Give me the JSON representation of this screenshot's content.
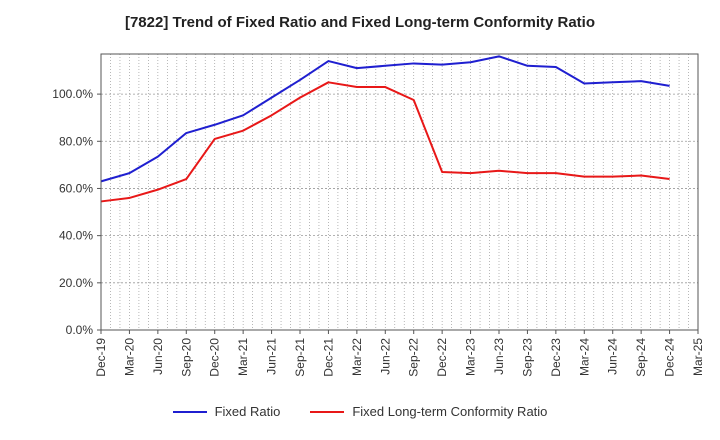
{
  "chart_data": {
    "type": "line",
    "title": "[7822]  Trend of Fixed Ratio and Fixed Long-term Conformity Ratio",
    "xlabel": "",
    "ylabel": "",
    "ylim": [
      0,
      117
    ],
    "yticks": [
      0,
      20,
      40,
      60,
      80,
      100
    ],
    "ytick_labels": [
      "0.0%",
      "20.0%",
      "40.0%",
      "60.0%",
      "80.0%",
      "100.0%"
    ],
    "x_tick_labels": [
      "Dec-19",
      "Mar-20",
      "Jun-20",
      "Sep-20",
      "Dec-20",
      "Mar-21",
      "Jun-21",
      "Sep-21",
      "Dec-21",
      "Mar-22",
      "Jun-22",
      "Sep-22",
      "Dec-22",
      "Mar-23",
      "Jun-23",
      "Sep-23",
      "Dec-23",
      "Mar-24",
      "Jun-24",
      "Sep-24",
      "Dec-24",
      "Mar-25"
    ],
    "x": [
      "Dec-19",
      "Mar-20",
      "Jun-20",
      "Sep-20",
      "Dec-20",
      "Mar-21",
      "Jun-21",
      "Sep-21",
      "Dec-21",
      "Mar-22",
      "Jun-22",
      "Sep-22",
      "Dec-22",
      "Mar-23",
      "Jun-23",
      "Sep-23",
      "Dec-23",
      "Mar-24",
      "Jun-24",
      "Sep-24",
      "Dec-24"
    ],
    "grid": true,
    "legend_position": "bottom",
    "series": [
      {
        "name": "Fixed Ratio",
        "color": "#1f1fd0",
        "values": [
          63.0,
          66.5,
          73.5,
          83.5,
          87.0,
          91.0,
          98.5,
          106.0,
          114.0,
          111.0,
          112.0,
          113.0,
          112.5,
          113.5,
          116.0,
          112.0,
          111.5,
          104.5,
          105.0,
          105.5,
          103.5
        ]
      },
      {
        "name": "Fixed Long-term Conformity Ratio",
        "color": "#e81818",
        "values": [
          54.5,
          56.0,
          59.5,
          64.0,
          81.0,
          84.5,
          91.0,
          98.5,
          105.0,
          103.0,
          103.0,
          97.5,
          67.0,
          66.5,
          67.5,
          66.5,
          66.5,
          65.0,
          65.0,
          65.5,
          64.0
        ]
      }
    ]
  }
}
